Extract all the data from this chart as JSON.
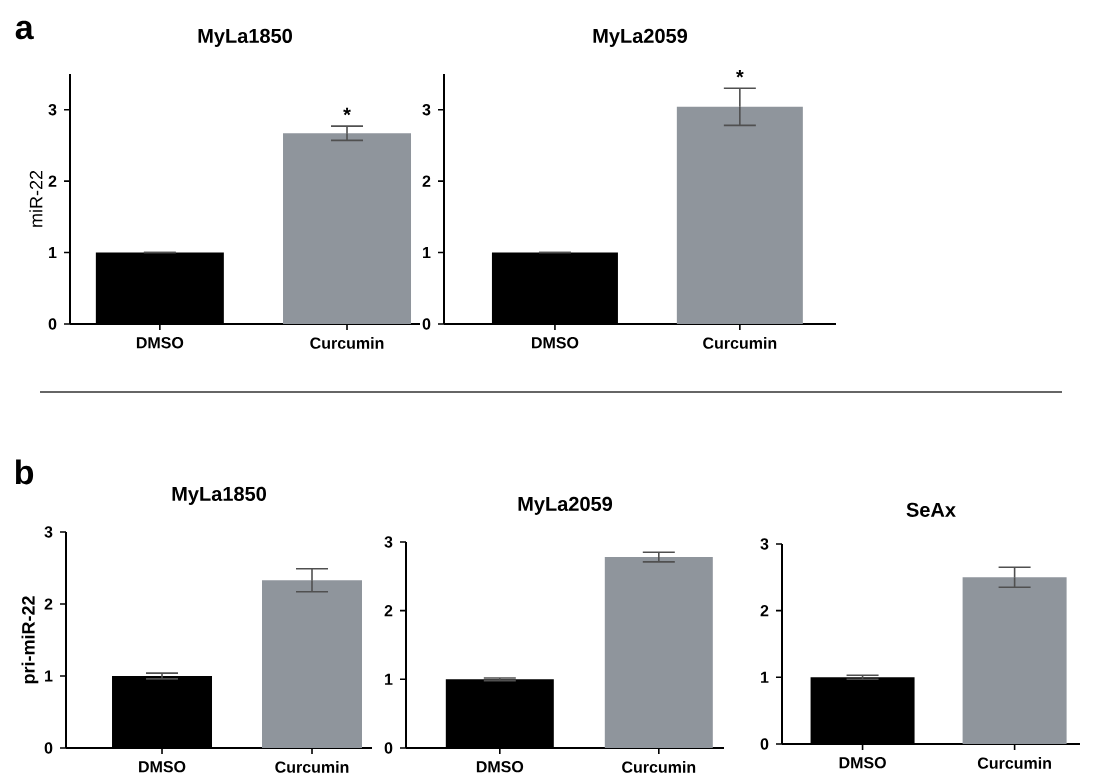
{
  "chart_data": [
    {
      "type": "bar",
      "title": "MyLa1850",
      "ylabel": "miR-22",
      "categories": [
        "DMSO",
        "Curcumin"
      ],
      "values": [
        1.0,
        2.67
      ],
      "colors": [
        "#000000",
        "#8f959c"
      ],
      "errors": [
        0,
        0.1
      ],
      "ylim": [
        0,
        3.5
      ],
      "yticks": [
        0,
        1,
        2,
        3
      ],
      "annotations": [
        "a",
        {
          "text": "*",
          "x": "Curcumin",
          "y": 2.8
        }
      ]
    },
    {
      "type": "bar",
      "title": "MyLa2059",
      "categories": [
        "DMSO",
        "Curcumin"
      ],
      "values": [
        1.0,
        3.04
      ],
      "colors": [
        "#000000",
        "#8f959c"
      ],
      "errors": [
        0,
        0.26
      ],
      "ylim": [
        0,
        3.5
      ],
      "yticks": [
        0,
        1,
        2,
        3
      ],
      "annotations": [
        {
          "text": "*",
          "x": "Curcumin",
          "y": 3.33
        }
      ]
    },
    {
      "type": "bar",
      "title": "MyLa1850",
      "ylabel": "pri-miR-22",
      "categories": [
        "DMSO",
        "Curcumin"
      ],
      "values": [
        1.0,
        2.33
      ],
      "colors": [
        "#000000",
        "#8f959c"
      ],
      "errors": [
        0.04,
        0.16
      ],
      "ylim": [
        0,
        3
      ],
      "yticks": [
        0,
        1,
        2,
        3
      ],
      "annotations": [
        "b"
      ]
    },
    {
      "type": "bar",
      "title": "MyLa2059",
      "categories": [
        "DMSO",
        "Curcumin"
      ],
      "values": [
        1.0,
        2.78
      ],
      "colors": [
        "#000000",
        "#8f959c"
      ],
      "errors": [
        0.02,
        0.07
      ],
      "ylim": [
        0,
        3
      ],
      "yticks": [
        0,
        1,
        2,
        3
      ]
    },
    {
      "type": "bar",
      "title": "SeAx",
      "categories": [
        "DMSO",
        "Curcumin"
      ],
      "values": [
        1.0,
        2.5
      ],
      "colors": [
        "#000000",
        "#8f959c"
      ],
      "errors": [
        0.03,
        0.15
      ],
      "ylim": [
        0,
        3
      ],
      "yticks": [
        0,
        1,
        2,
        3
      ]
    }
  ]
}
